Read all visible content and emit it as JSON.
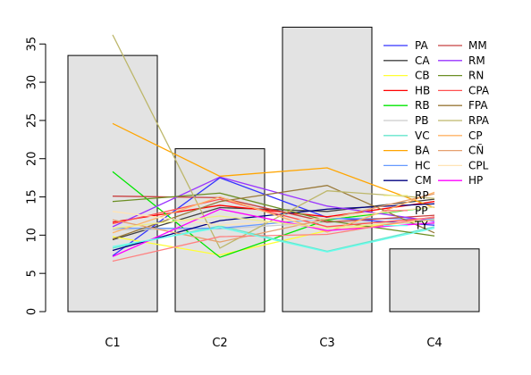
{
  "chart_data": {
    "type": "bar",
    "categories": [
      "C1",
      "C2",
      "C3",
      "C4"
    ],
    "values": [
      33.5,
      21.3,
      37.2,
      8.2
    ],
    "bar_color": "#e3e3e3",
    "ylim": [
      0,
      37.6
    ],
    "yticks": [
      0,
      5,
      10,
      15,
      20,
      25,
      30,
      35
    ],
    "title": "",
    "xlabel": "",
    "ylabel": "",
    "legend_position": "top-right",
    "series": [
      {
        "name": "PA",
        "color": "#3333ff",
        "values": [
          7.3,
          17.5,
          12.3,
          11.3
        ]
      },
      {
        "name": "CA",
        "color": "#404040",
        "values": [
          9.4,
          13.6,
          13.1,
          14.7
        ]
      },
      {
        "name": "CB",
        "color": "#ffff33",
        "values": [
          9.8,
          7.4,
          10.6,
          12.0
        ]
      },
      {
        "name": "HB",
        "color": "#ff0000",
        "values": [
          11.7,
          13.9,
          12.4,
          14.4
        ]
      },
      {
        "name": "RB",
        "color": "#00e600",
        "values": [
          18.3,
          7.1,
          12.0,
          13.7
        ]
      },
      {
        "name": "PB",
        "color": "#cccccc",
        "values": [
          10.7,
          10.8,
          11.7,
          11.5
        ]
      },
      {
        "name": "VC",
        "color": "#66e6cc",
        "values": [
          8.3,
          11.2,
          7.9,
          11.1
        ]
      },
      {
        "name": "BA",
        "color": "#ffa500",
        "values": [
          24.6,
          17.7,
          18.8,
          13.6
        ]
      },
      {
        "name": "HC",
        "color": "#6699ff",
        "values": [
          10.9,
          10.9,
          12.2,
          12.1
        ]
      },
      {
        "name": "CM",
        "color": "#000080",
        "values": [
          8.0,
          11.9,
          13.4,
          14.1
        ]
      },
      {
        "name": "MM",
        "color": "#c84040",
        "values": [
          15.1,
          14.9,
          11.7,
          12.6
        ]
      },
      {
        "name": "RM",
        "color": "#9933ff",
        "values": [
          11.1,
          17.6,
          13.8,
          11.8
        ]
      },
      {
        "name": "RN",
        "color": "#6b8e23",
        "values": [
          14.4,
          15.5,
          11.9,
          9.9
        ]
      },
      {
        "name": "CPA",
        "color": "#ff5050",
        "values": [
          11.5,
          14.7,
          11.1,
          12.3
        ]
      },
      {
        "name": "FPA",
        "color": "#9a7a3a",
        "values": [
          9.5,
          14.4,
          16.5,
          10.3
        ]
      },
      {
        "name": "RPA",
        "color": "#bdb76b",
        "values": [
          36.2,
          8.3,
          15.8,
          14.8
        ]
      },
      {
        "name": "CP",
        "color": "#ffb366",
        "values": [
          10.3,
          15.0,
          10.4,
          15.6
        ]
      },
      {
        "name": "CÑ",
        "color": "#e6a070",
        "values": [
          12.0,
          9.1,
          12.1,
          15.4
        ]
      },
      {
        "name": "CPL",
        "color": "#ffe4b5",
        "values": [
          13.1,
          11.3,
          12.2,
          13.7
        ]
      },
      {
        "name": "HP",
        "color": "#ff00ff",
        "values": [
          7.2,
          13.4,
          10.6,
          11.6
        ]
      },
      {
        "name": "RP",
        "color": "#eeee88",
        "values": [
          10.9,
          12.5,
          10.9,
          12.0
        ]
      },
      {
        "name": "PP",
        "color": "#ff8080",
        "values": [
          6.6,
          9.8,
          10.1,
          12.4
        ]
      },
      {
        "name": "TY",
        "color": "#66ffee",
        "values": [
          8.5,
          11.0,
          7.8,
          10.9
        ]
      }
    ]
  }
}
